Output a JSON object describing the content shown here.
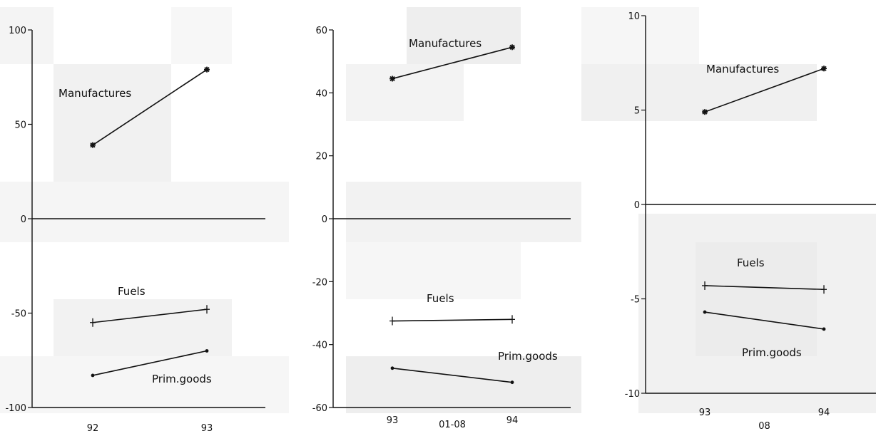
{
  "chart_data": [
    {
      "type": "line",
      "xlabel": "",
      "ylabel": "",
      "x": [
        "92",
        "93"
      ],
      "ylim": [
        -100,
        100
      ],
      "yticks": [
        100,
        50,
        0,
        -50,
        -100
      ],
      "ytick_labels": [
        "100",
        "50",
        "0",
        "-50",
        "-100"
      ],
      "zero_line": true,
      "series": [
        {
          "name": "Manufactures",
          "values": [
            39,
            79
          ],
          "marker": "asterisk"
        },
        {
          "name": "Fuels",
          "values": [
            -55,
            -48
          ],
          "marker": "plus"
        },
        {
          "name": "Prim.goods",
          "values": [
            -83,
            -70
          ],
          "marker": "dot"
        }
      ]
    },
    {
      "type": "line",
      "xlabel": "01-08",
      "ylabel": "",
      "x": [
        "93",
        "94"
      ],
      "ylim": [
        -60,
        60
      ],
      "yticks": [
        60,
        40,
        20,
        0,
        -20,
        -40,
        -60
      ],
      "ytick_labels": [
        "60",
        "40",
        "20",
        "0",
        "-20",
        "-40",
        "-60"
      ],
      "zero_line": true,
      "series": [
        {
          "name": "Manufactures",
          "values": [
            44.5,
            54.5
          ],
          "marker": "asterisk"
        },
        {
          "name": "Fuels",
          "values": [
            -32.5,
            -32
          ],
          "marker": "plus"
        },
        {
          "name": "Prim.goods",
          "values": [
            -47.5,
            -52
          ],
          "marker": "dot"
        }
      ]
    },
    {
      "type": "line",
      "xlabel": "08",
      "ylabel": "",
      "x": [
        "93",
        "94"
      ],
      "ylim": [
        -10,
        10
      ],
      "yticks": [
        10,
        5,
        0,
        -5,
        -10
      ],
      "ytick_labels": [
        "10",
        "5",
        "0",
        "-5",
        "-10"
      ],
      "zero_line": true,
      "series": [
        {
          "name": "Manufactures",
          "values": [
            4.9,
            7.2
          ],
          "marker": "asterisk"
        },
        {
          "name": "Fuels",
          "values": [
            -4.3,
            -4.5
          ],
          "marker": "plus"
        },
        {
          "name": "Prim.goods",
          "values": [
            -5.7,
            -6.6
          ],
          "marker": "dot"
        }
      ]
    }
  ]
}
